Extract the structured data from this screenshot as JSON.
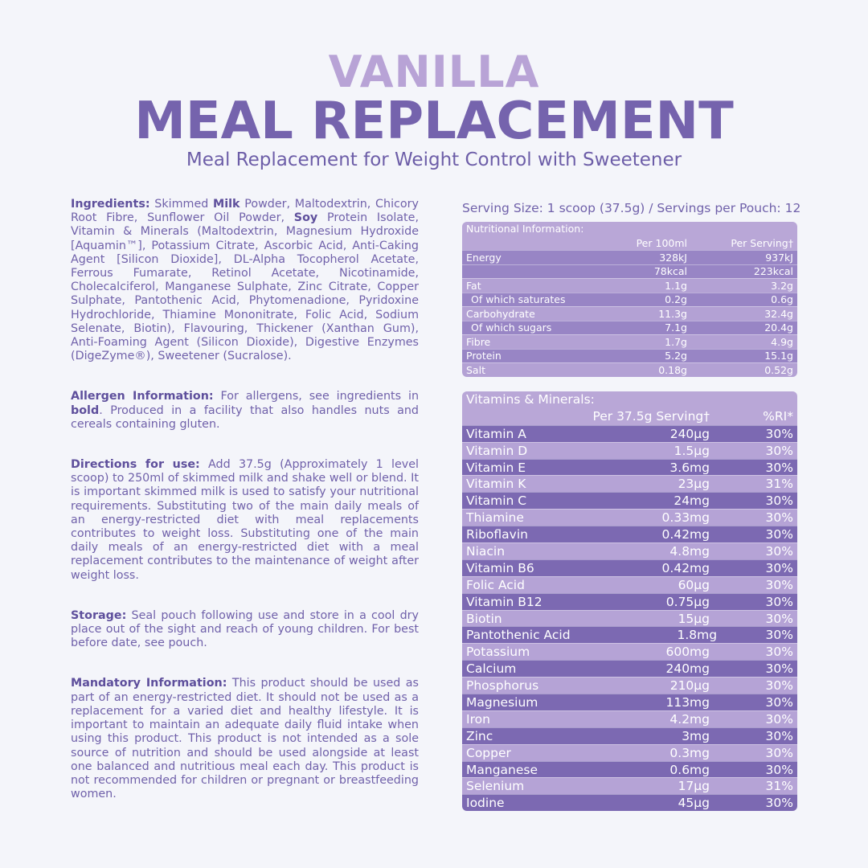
{
  "header": {
    "line1": "VANILLA",
    "line2": "MEAL REPLACEMENT",
    "subtitle": "Meal Replacement for Weight Control with Sweetener"
  },
  "sections": [
    {
      "label": "Ingredients:",
      "runs": [
        {
          "text": "Skimmed "
        },
        {
          "text": "Milk",
          "bold": true
        },
        {
          "text": " Powder, Maltodextrin, Chicory Root Fibre, Sunflower Oil Powder, "
        },
        {
          "text": "Soy",
          "bold": true
        },
        {
          "text": " Protein Isolate, Vitamin & Minerals (Maltodextrin, Magnesium Hydroxide [Aquamin™], Potassium Citrate, Ascorbic Acid, Anti-Caking Agent [Silicon Dioxide], DL-Alpha Tocopherol Acetate, Ferrous Fumarate, Retinol Acetate, Nicotinamide, Cholecalciferol, Manganese Sulphate, Zinc Citrate, Copper Sulphate, Pantothenic Acid, Phytomenadione, Pyridoxine Hydrochloride, Thiamine Mononitrate, Folic Acid, Sodium Selenate, Biotin), Flavouring, Thickener (Xanthan Gum), Anti-Foaming Agent (Silicon Dioxide), Digestive Enzymes (DigeZyme®), Sweetener (Sucralose)."
        }
      ]
    },
    {
      "label": "Allergen Information:",
      "runs": [
        {
          "text": "For allergens, see ingredients in "
        },
        {
          "text": "bold",
          "bold": true
        },
        {
          "text": ". Produced in a facility that also handles nuts and cereals containing gluten."
        }
      ]
    },
    {
      "label": "Directions for use:",
      "runs": [
        {
          "text": "Add 37.5g (Approximately 1 level scoop) to 250ml of skimmed milk and shake well or blend. It is important skimmed milk is used to satisfy your nutritional requirements. Substituting two of the main daily meals of an energy-restricted diet with meal replacements contributes to weight loss. Substituting one of the main daily meals of an energy-restricted diet with a meal replacement contributes to the maintenance of weight after weight loss."
        }
      ]
    },
    {
      "label": "Storage:",
      "runs": [
        {
          "text": "Seal pouch following use and store in a cool dry place out of the sight and reach of young children. For best before date, see pouch."
        }
      ]
    },
    {
      "label": "Mandatory Information:",
      "runs": [
        {
          "text": "This product should be used as part of an energy-restricted diet. It should not be used as a replacement for a varied diet and healthy lifestyle. It is important to maintain an adequate daily fluid intake when using this product. This product is not intended as a sole source of nutrition and should be used alongside at least one balanced and nutritious meal each day. This product is not recommended for children or pregnant or breastfeeding women."
        }
      ]
    }
  ],
  "serving": "Serving Size: 1 scoop (37.5g) / Servings per Pouch: 12",
  "nutrition": {
    "title": "Nutritional Information:",
    "headers": [
      "Per 100ml",
      "Per Serving†"
    ],
    "rows": [
      [
        "Energy",
        "328kJ",
        "937kJ"
      ],
      [
        null,
        "78kcal",
        "223kcal"
      ],
      [
        "Fat",
        "1.1g",
        "3.2g"
      ],
      [
        "Of which saturates",
        "0.2g",
        "0.6g"
      ],
      [
        "Carbohydrate",
        "11.3g",
        "32.4g"
      ],
      [
        "Of which sugars",
        "7.1g",
        "20.4g"
      ],
      [
        "Fibre",
        "1.7g",
        "4.9g"
      ],
      [
        "Protein",
        "5.2g",
        "15.1g"
      ],
      [
        "Salt",
        "0.18g",
        "0.52g"
      ]
    ]
  },
  "vitamins": {
    "title": "Vitamins & Minerals:",
    "headers": [
      "Per 37.5g Serving†",
      "%RI*"
    ],
    "rows": [
      [
        "Vitamin A",
        "240µg",
        "30%"
      ],
      [
        "Vitamin D",
        "1.5µg",
        "30%"
      ],
      [
        "Vitamin E",
        "3.6mg",
        "30%"
      ],
      [
        "Vitamin K",
        "23µg",
        "31%"
      ],
      [
        "Vitamin C",
        "24mg",
        "30%"
      ],
      [
        "Thiamine",
        "0.33mg",
        "30%"
      ],
      [
        "Riboflavin",
        "0.42mg",
        "30%"
      ],
      [
        "Niacin",
        "4.8mg",
        "30%"
      ],
      [
        "Vitamin B6",
        "0.42mg",
        "30%"
      ],
      [
        "Folic Acid",
        "60µg",
        "30%"
      ],
      [
        "Vitamin B12",
        "0.75µg",
        "30%"
      ],
      [
        "Biotin",
        "15µg",
        "30%"
      ],
      [
        "Pantothenic Acid",
        "1.8mg",
        "30%"
      ],
      [
        "Potassium",
        "600mg",
        "30%"
      ],
      [
        "Calcium",
        "240mg",
        "30%"
      ],
      [
        "Phosphorus",
        "210µg",
        "30%"
      ],
      [
        "Magnesium",
        "113mg",
        "30%"
      ],
      [
        "Iron",
        "4.2mg",
        "30%"
      ],
      [
        "Zinc",
        "3mg",
        "30%"
      ],
      [
        "Copper",
        "0.3mg",
        "30%"
      ],
      [
        "Manganese",
        "0.6mg",
        "30%"
      ],
      [
        "Selenium",
        "17µg",
        "31%"
      ],
      [
        "Iodine",
        "45µg",
        "30%"
      ]
    ]
  }
}
